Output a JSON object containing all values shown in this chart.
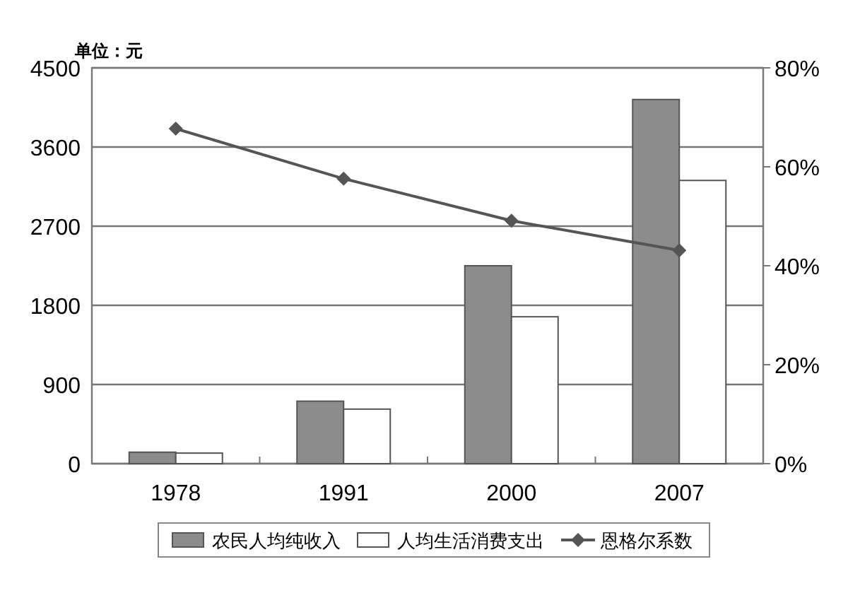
{
  "chart_data": {
    "type": "bar",
    "categories": [
      "1978",
      "1991",
      "2000",
      "2007"
    ],
    "series": [
      {
        "name": "农民人均纯收入",
        "color": "#8c8c8c",
        "values": [
          130,
          710,
          2250,
          4140
        ]
      },
      {
        "name": "人均生活消费支出",
        "color": "#ffffff",
        "values": [
          120,
          620,
          1670,
          3220
        ]
      },
      {
        "name": "恩格尔系数",
        "type": "line",
        "axis": "y2",
        "color": "#555555",
        "marker": "diamond",
        "values": [
          67.7,
          57.6,
          49.1,
          43.1
        ]
      }
    ],
    "ylim": [
      0,
      4500
    ],
    "yticks": [
      0,
      900,
      1800,
      2700,
      3600,
      4500
    ],
    "y2lim": [
      0,
      80
    ],
    "y2ticks": [
      {
        "value": 0,
        "label": "0%"
      },
      {
        "value": 20,
        "label": "20%"
      },
      {
        "value": 40,
        "label": "40%"
      },
      {
        "value": 60,
        "label": "60%"
      },
      {
        "value": 80,
        "label": "80%"
      }
    ],
    "annotations": [
      "单位：元"
    ],
    "grid": "y",
    "legend": "bottom"
  }
}
